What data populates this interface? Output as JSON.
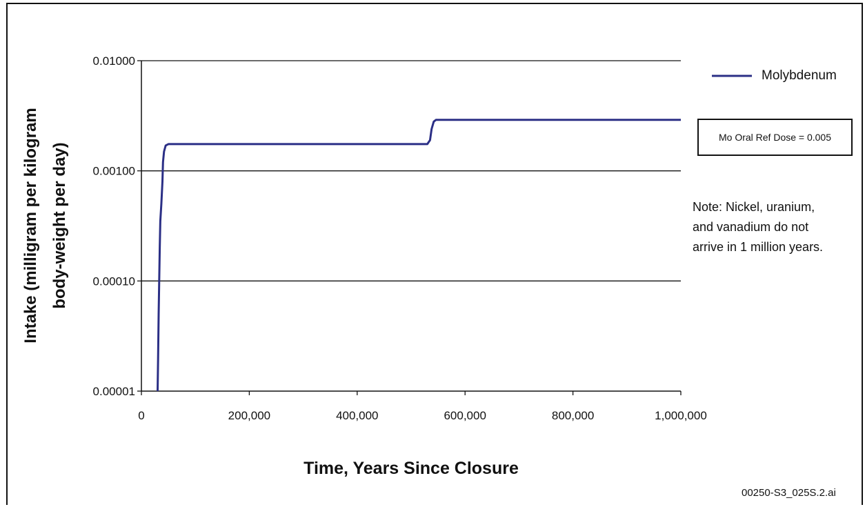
{
  "chart_data": {
    "type": "line",
    "title": "",
    "xlabel": "Time, Years Since Closure",
    "ylabel_line1": "Intake (milligram per kilogram",
    "ylabel_line2": "body-weight per day)",
    "yscale": "log",
    "xlim": [
      0,
      1000000
    ],
    "ylim": [
      1e-05,
      0.01
    ],
    "x_ticks": [
      0,
      200000,
      400000,
      600000,
      800000,
      1000000
    ],
    "x_tick_labels": [
      "0",
      "200,000",
      "400,000",
      "600,000",
      "800,000",
      "1,000,000"
    ],
    "y_ticks": [
      1e-05,
      0.0001,
      0.001,
      0.01
    ],
    "y_tick_labels": [
      "0.00001",
      "0.00010",
      "0.00100",
      "0.01000"
    ],
    "grid": "horizontal",
    "legend_position": "top-right",
    "series": [
      {
        "name": "Molybdenum",
        "color": "#2b2f86",
        "points": [
          [
            30000,
            1e-05
          ],
          [
            31000,
            2e-05
          ],
          [
            32000,
            5e-05
          ],
          [
            33000,
            0.0001
          ],
          [
            34000,
            0.0002
          ],
          [
            35000,
            0.00035
          ],
          [
            37000,
            0.0005
          ],
          [
            39000,
            0.0008
          ],
          [
            40000,
            0.0012
          ],
          [
            42000,
            0.0015
          ],
          [
            45000,
            0.0017
          ],
          [
            50000,
            0.00175
          ],
          [
            100000,
            0.00175
          ],
          [
            300000,
            0.00175
          ],
          [
            530000,
            0.00175
          ],
          [
            535000,
            0.0019
          ],
          [
            538000,
            0.0024
          ],
          [
            542000,
            0.0028
          ],
          [
            546000,
            0.0029
          ],
          [
            560000,
            0.0029
          ],
          [
            800000,
            0.0029
          ],
          [
            1000000,
            0.0029
          ]
        ]
      }
    ]
  },
  "reference_box": "Mo Oral Ref Dose = 0.005",
  "note": "Note:  Nickel, uranium,\nand vanadium do not\narrive in 1 million years.",
  "figure_code": "00250-S3_025S.2.ai"
}
